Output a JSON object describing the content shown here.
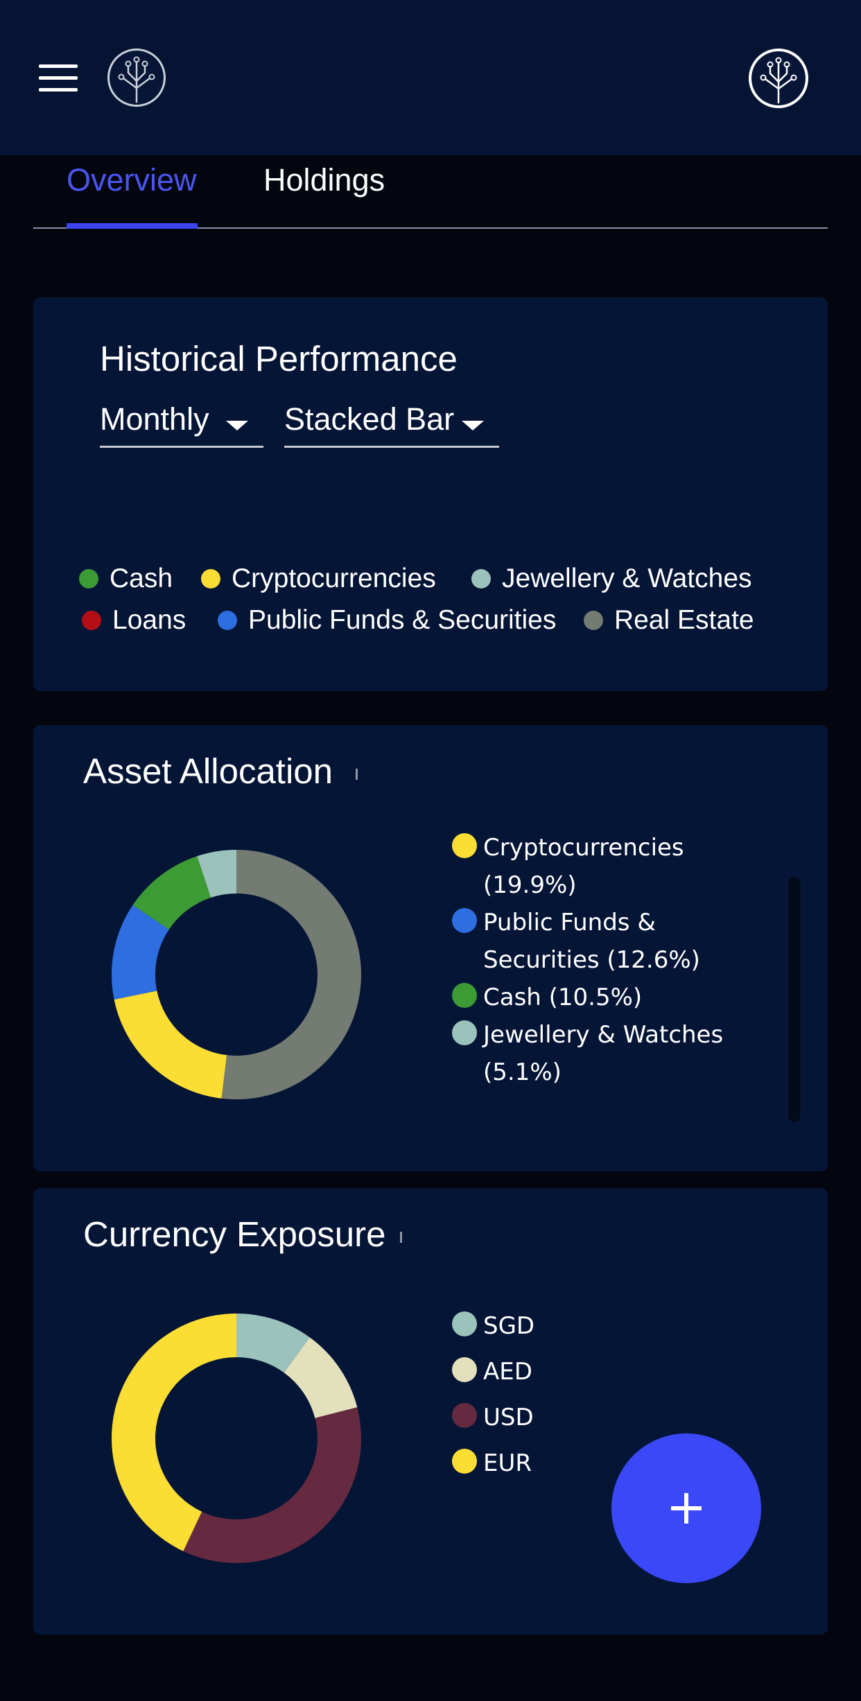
{
  "tabs": {
    "overview": "Overview",
    "holdings": "Holdings"
  },
  "icons": {
    "menu": "menu-icon",
    "logo": "tree-logo-icon",
    "profile": "profile-logo-icon",
    "add": "plus-icon"
  },
  "historical": {
    "title": "Historical Performance",
    "period": "Monthly",
    "chart_type": "Stacked Bar",
    "legend": [
      {
        "label": "Cash",
        "color": "#3c9b35"
      },
      {
        "label": "Cryptocurrencies",
        "color": "#fbdd34"
      },
      {
        "label": "Jewellery & Watches",
        "color": "#9cc3bb"
      },
      {
        "label": "Loans",
        "color": "#b50e15"
      },
      {
        "label": "Public Funds & Securities",
        "color": "#2d6fe0"
      },
      {
        "label": "Real Estate",
        "color": "#747b72"
      }
    ]
  },
  "asset_allocation": {
    "title": "Asset Allocation",
    "legend": [
      {
        "label": "Cryptocurrencies (19.9%)",
        "color": "#fbdd34"
      },
      {
        "label": "Public Funds & Securities (12.6%)",
        "color": "#2d6fe0"
      },
      {
        "label": "Cash (10.5%)",
        "color": "#3c9b35"
      },
      {
        "label": "Jewellery & Watches (5.1%)",
        "color": "#9cc3bb"
      }
    ]
  },
  "currency_exposure": {
    "title": "Currency Exposure",
    "legend": [
      {
        "label": "SGD",
        "color": "#9cc3bb"
      },
      {
        "label": "AED",
        "color": "#e3e0bc"
      },
      {
        "label": "USD",
        "color": "#652a40"
      },
      {
        "label": "EUR",
        "color": "#fbdd34"
      }
    ]
  },
  "chart_data": [
    {
      "type": "pie",
      "title": "Asset Allocation",
      "categories": [
        "Real Estate",
        "Cryptocurrencies",
        "Public Funds & Securities",
        "Cash",
        "Jewellery & Watches"
      ],
      "values": [
        51.9,
        19.9,
        12.6,
        10.5,
        5.1
      ],
      "colors": [
        "#747b72",
        "#fbdd34",
        "#2d6fe0",
        "#3c9b35",
        "#9cc3bb"
      ]
    },
    {
      "type": "pie",
      "title": "Currency Exposure",
      "categories": [
        "SGD",
        "AED",
        "USD",
        "EUR"
      ],
      "values": [
        10,
        11,
        36,
        43
      ],
      "colors": [
        "#9cc3bb",
        "#e3e0bc",
        "#652a40",
        "#fbdd34"
      ]
    }
  ]
}
